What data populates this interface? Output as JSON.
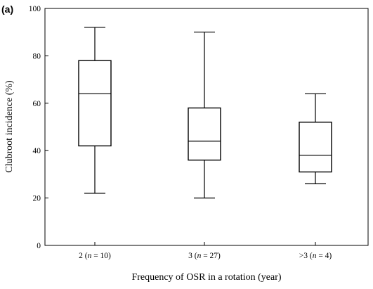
{
  "panel_label": "(a)",
  "chart_data": {
    "type": "box",
    "xlabel": "Frequency of OSR in a rotation (year)",
    "ylabel": "Clubroot incidence (%)",
    "ylim": [
      0,
      100
    ],
    "yticks": [
      0,
      20,
      40,
      60,
      80,
      100
    ],
    "grid": false,
    "categories": [
      {
        "main": "2 (",
        "n": "n",
        "rest": " = 10)"
      },
      {
        "main": "3 (",
        "n": "n",
        "rest": " = 27)"
      },
      {
        "main": ">3 (",
        "n": "n",
        "rest": " = 4)"
      }
    ],
    "boxes": [
      {
        "min": 22,
        "q1": 42,
        "median": 64,
        "q3": 78,
        "max": 92
      },
      {
        "min": 20,
        "q1": 36,
        "median": 44,
        "q3": 58,
        "max": 90
      },
      {
        "min": 26,
        "q1": 31,
        "median": 38,
        "q3": 52,
        "max": 64
      }
    ]
  }
}
